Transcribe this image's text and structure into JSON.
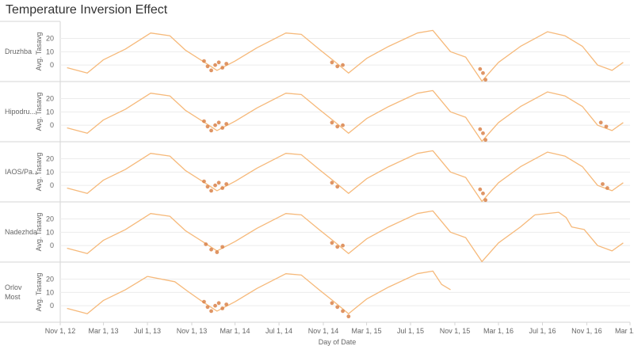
{
  "title": "Temperature Inversion Effect",
  "xlabel": "Day of Date",
  "ylabel": "Avg. Tasavg",
  "colors": {
    "line": "#f6b97a",
    "inversion_mark": "#d9824a",
    "grid": "#ececec",
    "divider": "#d6d6d6",
    "text": "#666666"
  },
  "chart_data": {
    "type": "line",
    "title": "Temperature Inversion Effect",
    "xlabel": "Day of Date",
    "ylabel": "Avg. Tasavg",
    "x_ticks": [
      "Nov 1, 12",
      "Mar 1, 13",
      "Jul 1, 13",
      "Nov 1, 13",
      "Mar 1, 14",
      "Jul 1, 14",
      "Nov 1, 14",
      "Mar 1, 15",
      "Jul 1, 15",
      "Nov 1, 15",
      "Mar 1, 16",
      "Jul 1, 16",
      "Nov 1, 16",
      "Mar 1, 17"
    ],
    "xlim": [
      "2012-11-01",
      "2017-03-01"
    ],
    "ylim": [
      -10,
      28
    ],
    "y_ticks": [
      0,
      10,
      20
    ],
    "grid": true,
    "panels": [
      {
        "station": "Druzhba",
        "series": [
          {
            "x": [
              "2012-11-20",
              "2013-01-15",
              "2013-03-01",
              "2013-05-01",
              "2013-07-10",
              "2013-09-01",
              "2013-10-15",
              "2013-12-01",
              "2014-01-10",
              "2014-03-01",
              "2014-05-01",
              "2014-07-20",
              "2014-09-01",
              "2014-10-20",
              "2014-12-01",
              "2015-01-10",
              "2015-03-01",
              "2015-05-01",
              "2015-07-20",
              "2015-09-01",
              "2015-10-20",
              "2015-12-01",
              "2016-01-15",
              "2016-03-01",
              "2016-05-01",
              "2016-07-15",
              "2016-09-01",
              "2016-10-20",
              "2016-12-01",
              "2017-01-10",
              "2017-02-10"
            ],
            "y": [
              -2,
              -6,
              4,
              12,
              24,
              22,
              11,
              3,
              -4,
              3,
              13,
              24,
              23,
              12,
              3,
              -6,
              5,
              14,
              24,
              26,
              10,
              6,
              -12,
              2,
              14,
              25,
              22,
              14,
              0,
              -4,
              2
            ]
          }
        ],
        "inversion_x": [
          "2013-12-05",
          "2013-12-15",
          "2013-12-25",
          "2014-01-05",
          "2014-01-15",
          "2014-01-25",
          "2014-02-05",
          "2014-11-25",
          "2014-12-10",
          "2014-12-25",
          "2016-01-10",
          "2016-01-18",
          "2016-01-25"
        ],
        "inversion_y": [
          3,
          -1,
          -4,
          0,
          2,
          -2,
          1,
          2,
          -1,
          0,
          -3,
          -6,
          -11
        ]
      },
      {
        "station": "Hipodru...",
        "series": [
          {
            "x": [
              "2012-11-20",
              "2013-01-15",
              "2013-03-01",
              "2013-05-01",
              "2013-07-10",
              "2013-09-01",
              "2013-10-15",
              "2013-12-01",
              "2014-01-10",
              "2014-03-01",
              "2014-05-01",
              "2014-07-20",
              "2014-09-01",
              "2014-10-20",
              "2014-12-01",
              "2015-01-10",
              "2015-03-01",
              "2015-05-01",
              "2015-07-20",
              "2015-09-01",
              "2015-10-20",
              "2015-12-01",
              "2016-01-15",
              "2016-03-01",
              "2016-05-01",
              "2016-07-15",
              "2016-09-01",
              "2016-10-20",
              "2016-12-01",
              "2017-01-10",
              "2017-02-10"
            ],
            "y": [
              -2,
              -6,
              4,
              12,
              24,
              22,
              11,
              3,
              -4,
              3,
              13,
              24,
              23,
              12,
              3,
              -6,
              5,
              14,
              24,
              26,
              10,
              6,
              -12,
              2,
              14,
              25,
              22,
              14,
              0,
              -4,
              2
            ]
          }
        ],
        "inversion_x": [
          "2013-12-05",
          "2013-12-15",
          "2013-12-25",
          "2014-01-05",
          "2014-01-15",
          "2014-01-25",
          "2014-02-05",
          "2014-11-25",
          "2014-12-10",
          "2014-12-25",
          "2016-01-10",
          "2016-01-18",
          "2016-01-25",
          "2016-12-10",
          "2016-12-25"
        ],
        "inversion_y": [
          3,
          -1,
          -4,
          0,
          2,
          -2,
          1,
          2,
          -1,
          0,
          -3,
          -6,
          -11,
          2,
          -1
        ]
      },
      {
        "station": "IAOS/Pa...",
        "series": [
          {
            "x": [
              "2012-11-20",
              "2013-01-15",
              "2013-03-01",
              "2013-05-01",
              "2013-07-10",
              "2013-09-01",
              "2013-10-15",
              "2013-12-01",
              "2014-01-10",
              "2014-03-01",
              "2014-05-01",
              "2014-07-20",
              "2014-09-01",
              "2014-10-20",
              "2014-12-01",
              "2015-01-10",
              "2015-03-01",
              "2015-05-01",
              "2015-07-20",
              "2015-09-01",
              "2015-10-20",
              "2015-12-01",
              "2016-01-15",
              "2016-03-01",
              "2016-05-01",
              "2016-07-15",
              "2016-09-01",
              "2016-10-20",
              "2016-12-01",
              "2017-01-10",
              "2017-02-10"
            ],
            "y": [
              -2,
              -6,
              4,
              12,
              24,
              22,
              11,
              3,
              -4,
              3,
              13,
              24,
              23,
              12,
              3,
              -6,
              5,
              14,
              24,
              26,
              10,
              6,
              -12,
              2,
              14,
              25,
              22,
              14,
              0,
              -4,
              2
            ]
          }
        ],
        "inversion_x": [
          "2013-12-05",
          "2013-12-15",
          "2013-12-25",
          "2014-01-05",
          "2014-01-15",
          "2014-01-25",
          "2014-02-05",
          "2014-11-25",
          "2014-12-10",
          "2016-01-10",
          "2016-01-18",
          "2016-01-25",
          "2016-12-15",
          "2016-12-28"
        ],
        "inversion_y": [
          3,
          -1,
          -4,
          0,
          2,
          -2,
          1,
          2,
          -1,
          -3,
          -6,
          -11,
          1,
          -2
        ]
      },
      {
        "station": "Nadezhda",
        "series": [
          {
            "x": [
              "2012-11-20",
              "2013-01-15",
              "2013-03-01",
              "2013-05-01",
              "2013-07-10",
              "2013-09-01",
              "2013-10-15",
              "2013-12-01",
              "2014-01-10",
              "2014-03-01",
              "2014-05-01",
              "2014-07-20",
              "2014-09-01",
              "2014-10-20",
              "2014-12-01",
              "2015-01-10",
              "2015-03-01",
              "2015-05-01",
              "2015-07-20",
              "2015-09-01",
              "2015-10-20",
              "2015-12-01",
              "2016-01-15",
              "2016-03-01",
              "2016-05-01",
              "2016-06-10"
            ],
            "y": [
              -2,
              -6,
              4,
              12,
              24,
              22,
              11,
              3,
              -4,
              3,
              13,
              24,
              23,
              12,
              3,
              -6,
              5,
              14,
              24,
              26,
              10,
              6,
              -12,
              2,
              14,
              23
            ]
          },
          {
            "x": [
              "2016-06-10",
              "2016-08-15",
              "2016-09-05",
              "2016-09-20",
              "2016-10-25",
              "2016-12-01",
              "2017-01-10",
              "2017-02-10"
            ],
            "y": [
              23,
              25,
              21,
              14,
              12,
              0,
              -4,
              2
            ]
          }
        ],
        "inversion_x": [
          "2013-12-10",
          "2013-12-25",
          "2014-01-10",
          "2014-01-25",
          "2014-11-25",
          "2014-12-10",
          "2014-12-25"
        ],
        "inversion_y": [
          1,
          -3,
          -5,
          -1,
          2,
          -1,
          0
        ]
      },
      {
        "station": "Orlov Most",
        "series": [
          {
            "x": [
              "2012-11-20",
              "2013-01-15",
              "2013-03-01",
              "2013-05-01",
              "2013-07-01"
            ],
            "y": [
              -2,
              -6,
              4,
              12,
              22
            ]
          },
          {
            "x": [
              "2013-07-01",
              "2013-09-15",
              "2013-10-20",
              "2013-12-01",
              "2014-01-10",
              "2014-03-01",
              "2014-05-01",
              "2014-07-20",
              "2014-09-01",
              "2014-10-20",
              "2014-12-01",
              "2015-01-10",
              "2015-03-01",
              "2015-05-01",
              "2015-07-20",
              "2015-09-01",
              "2015-09-25",
              "2015-10-20"
            ],
            "y": [
              22,
              18,
              11,
              3,
              -4,
              3,
              13,
              24,
              23,
              12,
              3,
              -6,
              5,
              14,
              24,
              26,
              16,
              12
            ]
          }
        ],
        "inversion_x": [
          "2013-12-05",
          "2013-12-15",
          "2013-12-25",
          "2014-01-05",
          "2014-01-15",
          "2014-01-25",
          "2014-02-05",
          "2014-11-25",
          "2014-12-10",
          "2014-12-25",
          "2015-01-10"
        ],
        "inversion_y": [
          3,
          -1,
          -4,
          0,
          2,
          -2,
          1,
          2,
          -1,
          -4,
          -8
        ]
      }
    ]
  }
}
